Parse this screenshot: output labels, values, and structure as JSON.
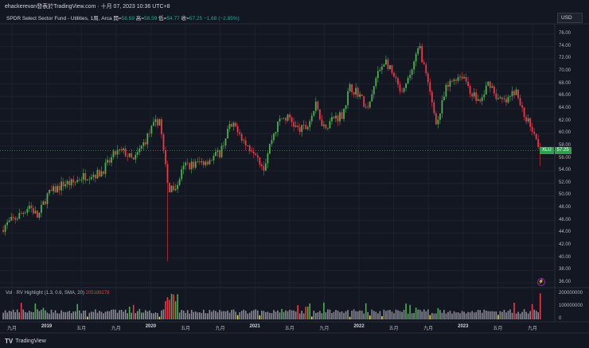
{
  "header": {
    "attribution": "ehackerevan發表於TradingView.com · 十月 07, 2023 10:36 UTC+8"
  },
  "legend": {
    "title": "SPDR Select Sector Fund - Utilities, 1周, Arca",
    "open_label": "開=",
    "open": "58.59",
    "high_label": "高=",
    "high": "58.59",
    "low_label": "低=",
    "low": "54.77",
    "close_label": "收=",
    "close": "57.25",
    "change": "−1.68 (−2.85%)"
  },
  "currency": "USD",
  "last_price": {
    "ticker": "XLU",
    "price": "57.25"
  },
  "volume_indicator": {
    "label": "Vol · RV Highlight (1.3, 0.6, SMA, 20)",
    "value": "205188278"
  },
  "footer": {
    "logo": "TV",
    "brand": "TradingView"
  },
  "colors": {
    "up": "#4caf50",
    "down": "#f23645",
    "volume": "#8a8d96",
    "low_vol": "#e8e23a",
    "bg": "#131722"
  },
  "chart_data": {
    "type": "candlestick",
    "interval": "weekly",
    "price_axis": {
      "ticks": [
        "76.00",
        "74.00",
        "72.00",
        "70.00",
        "68.00",
        "66.00",
        "64.00",
        "62.00",
        "60.00",
        "58.00",
        "56.00",
        "54.00",
        "52.00",
        "50.00",
        "48.00",
        "46.00",
        "44.00",
        "42.00",
        "40.00",
        "38.00",
        "36.00"
      ],
      "range": [
        36,
        76
      ]
    },
    "volume_axis": {
      "ticks": [
        "200000000",
        "100000000",
        "0"
      ],
      "range": [
        0,
        220000000
      ]
    },
    "time_axis": [
      {
        "label": "九月",
        "year": false
      },
      {
        "label": "2019",
        "year": true
      },
      {
        "label": "五月",
        "year": false
      },
      {
        "label": "九月",
        "year": false
      },
      {
        "label": "2020",
        "year": true
      },
      {
        "label": "五月",
        "year": false
      },
      {
        "label": "九月",
        "year": false
      },
      {
        "label": "2021",
        "year": true
      },
      {
        "label": "五月",
        "year": false
      },
      {
        "label": "九月",
        "year": false
      },
      {
        "label": "2022",
        "year": true
      },
      {
        "label": "五月",
        "year": false
      },
      {
        "label": "九月",
        "year": false
      },
      {
        "label": "2023",
        "year": true
      },
      {
        "label": "五月",
        "year": false
      },
      {
        "label": "九月",
        "year": false
      }
    ],
    "monthly_closes_from_aug_2018": [
      45,
      46,
      47,
      48.5,
      46.5,
      50,
      51,
      52,
      52,
      53,
      53.5,
      53.5,
      55,
      57,
      57,
      55.5,
      58,
      60.5,
      62.5,
      51,
      52,
      55,
      55,
      55.5,
      56,
      57,
      61,
      61,
      58,
      57.5,
      54.5,
      59.5,
      62.5,
      62.5,
      60.5,
      61,
      64.5,
      61,
      62.5,
      63,
      67.5,
      66.5,
      63.5,
      69,
      72,
      69,
      66,
      70,
      74,
      67.5,
      61.5,
      67,
      69,
      69.5,
      66.5,
      65,
      68.5,
      65.5,
      65,
      67,
      63,
      61,
      57.25
    ],
    "events": [
      {
        "month_index": 19,
        "low": 39.5
      },
      {
        "month_index": 62,
        "low": 54.77
      }
    ]
  }
}
